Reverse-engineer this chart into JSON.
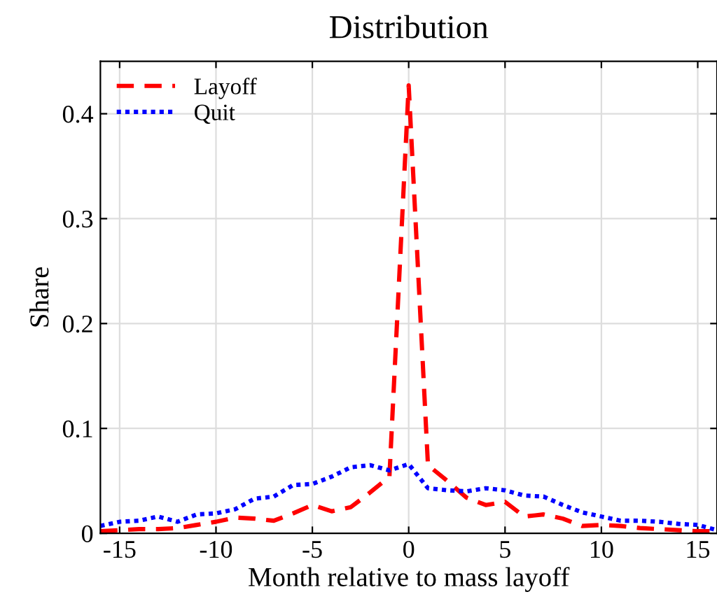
{
  "chart_data": {
    "type": "line",
    "title": "Distribution",
    "xlabel": "Month relative to mass layoff",
    "ylabel": "Share",
    "x": [
      -16,
      -15,
      -14,
      -13,
      -12,
      -11,
      -10,
      -9,
      -8,
      -7,
      -6,
      -5,
      -4,
      -3,
      -2,
      -1,
      0,
      1,
      2,
      3,
      4,
      5,
      6,
      7,
      8,
      9,
      10,
      11,
      12,
      13,
      14,
      15,
      16
    ],
    "series": [
      {
        "name": "Layoff",
        "color": "#ff0000",
        "line_style": "dashed",
        "values": [
          0.002,
          0.003,
          0.004,
          0.004,
          0.005,
          0.008,
          0.011,
          0.015,
          0.014,
          0.012,
          0.019,
          0.027,
          0.021,
          0.025,
          0.039,
          0.054,
          0.427,
          0.065,
          0.05,
          0.034,
          0.027,
          0.03,
          0.016,
          0.018,
          0.014,
          0.007,
          0.008,
          0.007,
          0.005,
          0.004,
          0.003,
          0.002,
          0.002
        ]
      },
      {
        "name": "Quit",
        "color": "#0000ff",
        "line_style": "dotted",
        "values": [
          0.007,
          0.011,
          0.012,
          0.016,
          0.011,
          0.018,
          0.019,
          0.023,
          0.033,
          0.035,
          0.046,
          0.047,
          0.054,
          0.063,
          0.065,
          0.06,
          0.066,
          0.043,
          0.041,
          0.04,
          0.043,
          0.041,
          0.036,
          0.035,
          0.027,
          0.02,
          0.016,
          0.012,
          0.012,
          0.011,
          0.009,
          0.008,
          0.003
        ]
      }
    ],
    "xlim": [
      -16,
      16
    ],
    "xticks": [
      -15,
      -10,
      -5,
      0,
      5,
      10,
      15
    ],
    "ylim": [
      0,
      0.45
    ],
    "yticks": [
      0,
      0.1,
      0.2,
      0.3,
      0.4
    ],
    "grid": true,
    "legend": "top left"
  }
}
